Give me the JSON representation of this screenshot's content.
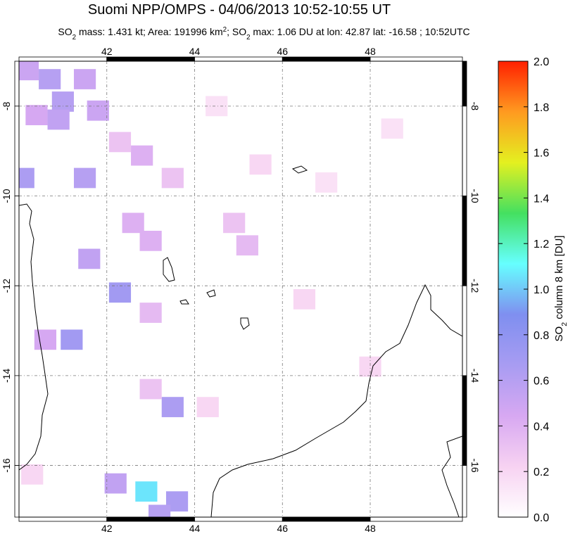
{
  "chart_data": {
    "type": "map",
    "title": "Suomi NPP/OMPS - 04/06/2013 10:52-10:55 UT",
    "subtitle": [
      {
        "text": "SO"
      },
      {
        "text": "2",
        "script": "sub"
      },
      {
        "text": " mass: 1.431 kt; Area: 191996 km"
      },
      {
        "text": "2",
        "script": "super"
      },
      {
        "text": "; SO"
      },
      {
        "text": "2",
        "script": "sub"
      },
      {
        "text": " max: 1.06 DU at lon: 42.87 lat: -16.58 ; 10:52UTC"
      }
    ],
    "xlim": [
      40,
      50.1
    ],
    "ylim": [
      -17.15,
      -7
    ],
    "xticks": [
      42,
      44,
      46,
      48
    ],
    "yticks": [
      -8,
      -10,
      -12,
      -14,
      -16
    ],
    "grid": true,
    "lon": [
      40.2,
      40.7,
      41.0,
      40.4,
      40.9,
      41.5,
      41.8,
      40.1,
      41.5,
      42.6,
      43.0,
      41.6,
      42.3,
      41.2,
      40.6,
      43.5,
      43.0,
      42.2,
      42.9,
      43.6,
      43.2,
      42.8,
      43.5,
      45.2,
      44.9,
      46.5,
      48.0,
      47.0,
      48.5,
      44.5,
      45.5,
      42.3,
      43.0,
      40.3,
      44.3
    ],
    "lat": [
      -7.2,
      -7.4,
      -7.9,
      -8.2,
      -8.3,
      -7.4,
      -8.1,
      -9.6,
      -9.6,
      -10.6,
      -11.0,
      -11.4,
      -12.15,
      -13.2,
      -13.2,
      -14.7,
      -14.3,
      -16.4,
      -16.58,
      -16.8,
      -17.1,
      -9.1,
      -9.6,
      -11.1,
      -10.6,
      -12.3,
      -13.8,
      -9.7,
      -8.5,
      -8.0,
      -9.3,
      -8.8,
      -12.6,
      -16.2,
      -14.7
    ],
    "values": [
      0.5,
      0.6,
      0.6,
      0.45,
      0.55,
      0.5,
      0.5,
      0.65,
      0.6,
      0.4,
      0.4,
      0.55,
      0.7,
      0.7,
      0.45,
      0.65,
      0.3,
      0.55,
      1.06,
      0.65,
      0.6,
      0.4,
      0.3,
      0.35,
      0.3,
      0.2,
      0.2,
      0.15,
      0.15,
      0.15,
      0.2,
      0.3,
      0.35,
      0.2,
      0.2
    ],
    "colormap": [
      "#ffffff",
      "#f7d2f2",
      "#d7a8f2",
      "#a89cf2",
      "#7f8ff0",
      "#66ffff",
      "#44e060",
      "#e4f020",
      "#ff9a20",
      "#ff2000"
    ],
    "colorbar": {
      "label": [
        {
          "text": "SO"
        },
        {
          "text": "2",
          "script": "sub"
        },
        {
          "text": " column 8 km [DU]"
        }
      ],
      "lim": [
        0,
        2
      ],
      "ticks": [
        {
          "value": 0,
          "label": "0.0"
        },
        {
          "value": 0.2,
          "label": "0.2"
        },
        {
          "value": 0.4,
          "label": "0.4"
        },
        {
          "value": 0.6,
          "label": "0.6"
        },
        {
          "value": 0.8,
          "label": "0.8"
        },
        {
          "value": 1,
          "label": "1.0"
        },
        {
          "value": 1.2,
          "label": "1.2"
        },
        {
          "value": 1.4,
          "label": "1.4"
        },
        {
          "value": 1.6,
          "label": "1.6"
        },
        {
          "value": 1.8,
          "label": "1.8"
        },
        {
          "value": 2,
          "label": "2.0"
        }
      ]
    }
  }
}
